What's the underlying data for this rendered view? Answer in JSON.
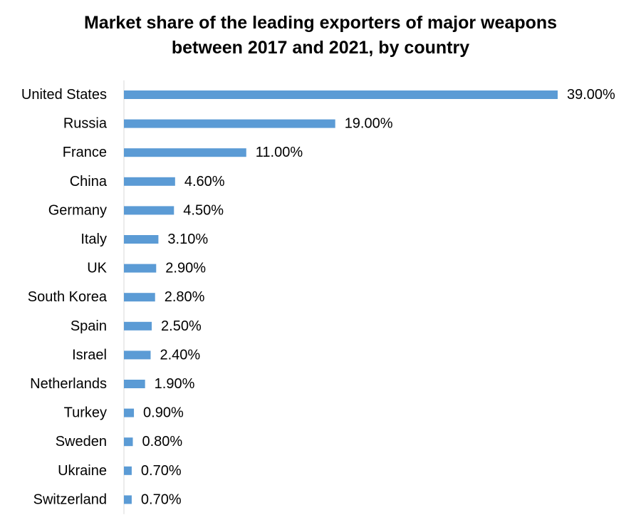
{
  "chart_data": {
    "type": "bar",
    "orientation": "horizontal",
    "title_lines": [
      "Market share of the leading exporters of major weapons",
      "between 2017 and 2021, by country"
    ],
    "categories": [
      "United States",
      "Russia",
      "France",
      "China",
      "Germany",
      "Italy",
      "UK",
      "South Korea",
      "Spain",
      "Israel",
      "Netherlands",
      "Turkey",
      "Sweden",
      "Ukraine",
      "Switzerland"
    ],
    "values": [
      39.0,
      19.0,
      11.0,
      4.6,
      4.5,
      3.1,
      2.9,
      2.8,
      2.5,
      2.4,
      1.9,
      0.9,
      0.8,
      0.7,
      0.7
    ],
    "value_labels": [
      "39.00%",
      "19.00%",
      "11.00%",
      "4.60%",
      "4.50%",
      "3.10%",
      "2.90%",
      "2.80%",
      "2.50%",
      "2.40%",
      "1.90%",
      "0.90%",
      "0.80%",
      "0.70%",
      "0.70%"
    ],
    "unit": "%",
    "xlim": [
      0,
      39
    ],
    "grid": false,
    "legend": "none",
    "bar_color": "#5B9BD5",
    "axis_color": "#D9D9D9"
  }
}
